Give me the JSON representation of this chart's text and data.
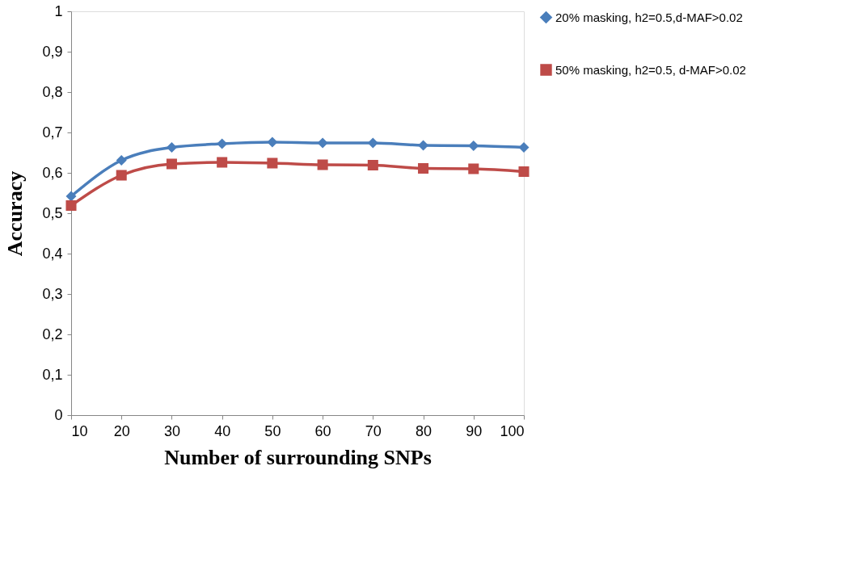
{
  "chart_data": {
    "type": "line",
    "xlabel": "Number of surrounding SNPs",
    "ylabel": "Accuracy",
    "x": [
      10,
      20,
      30,
      40,
      50,
      60,
      70,
      80,
      90,
      100
    ],
    "xlim": [
      10,
      100
    ],
    "xticks": [
      10,
      20,
      30,
      40,
      50,
      60,
      70,
      80,
      90,
      100
    ],
    "ylim": [
      0,
      1
    ],
    "yticks": [
      0,
      {
        "value": 0.1,
        "label": "0,1"
      },
      {
        "value": 0.2,
        "label": "0,2"
      },
      {
        "value": 0.3,
        "label": "0,3"
      },
      {
        "value": 0.4,
        "label": "0,4"
      },
      {
        "value": 0.5,
        "label": "0,5"
      },
      {
        "value": 0.6,
        "label": "0,6"
      },
      {
        "value": 0.7,
        "label": "0,7"
      },
      {
        "value": 0.8,
        "label": "0,8"
      },
      {
        "value": 0.9,
        "label": "0,9"
      },
      1
    ],
    "grid": false,
    "legend": "right",
    "line_style": "solid",
    "series": [
      {
        "name": "20% masking, h2=0.5,d-MAF>0.02",
        "color": "#4a7ebb",
        "marker": "diamond",
        "values": [
          0.542,
          0.631,
          0.663,
          0.672,
          0.676,
          0.674,
          0.674,
          0.668,
          0.667,
          0.663
        ]
      },
      {
        "name": "50% masking, h2=0.5, d-MAF>0.02",
        "color": "#be4b48",
        "marker": "square",
        "values": [
          0.519,
          0.594,
          0.622,
          0.626,
          0.624,
          0.62,
          0.619,
          0.611,
          0.61,
          0.603
        ]
      }
    ]
  }
}
